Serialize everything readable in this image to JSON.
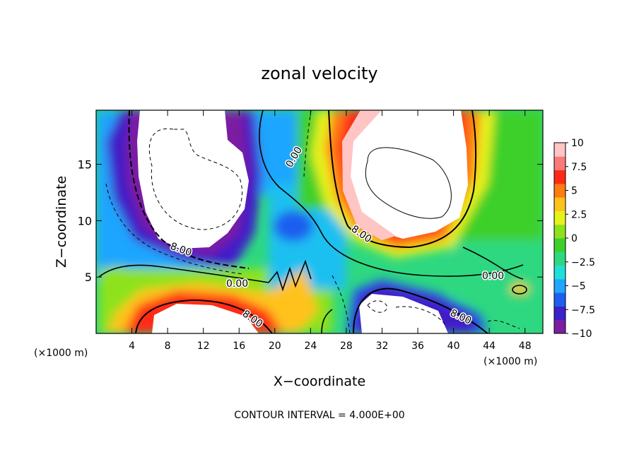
{
  "chart_data": {
    "type": "heatmap",
    "title": "zonal velocity",
    "xlabel": "X−coordinate",
    "ylabel": "Z−coordinate",
    "x_unit_left": "(×1000 m)",
    "x_unit_right": "(×1000 m)",
    "xlim": [
      0,
      50
    ],
    "ylim": [
      0,
      19.8
    ],
    "x_ticks": [
      4,
      8,
      12,
      16,
      20,
      24,
      28,
      32,
      36,
      40,
      44,
      48
    ],
    "y_ticks": [
      5,
      10,
      15
    ],
    "colorbar": {
      "min": -10,
      "max": 10,
      "ticks": [
        "10",
        "7.5",
        "5",
        "2.5",
        "0",
        "−2.5",
        "−5",
        "−7.5",
        "−10"
      ],
      "colors": [
        "#7b1fa2",
        "#3f1fc8",
        "#1f5ff0",
        "#1fa6ff",
        "#1fe0d8",
        "#2ed880",
        "#3cd02a",
        "#8ee21c",
        "#e7f21a",
        "#ffc21a",
        "#ff7c12",
        "#ff2a14",
        "#f87a7a",
        "#ffc4c4"
      ]
    },
    "contour_labels": [
      "0.00",
      "8.00",
      "0.00",
      "8.00",
      "8.00",
      "0.00",
      "8.00"
    ],
    "contour_interval_text": "CONTOUR INTERVAL = 4.000E+00"
  }
}
